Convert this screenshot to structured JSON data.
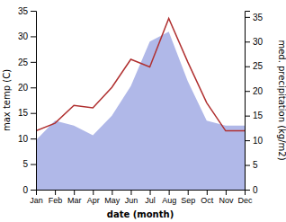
{
  "chart_data": {
    "type": "line",
    "categories": [
      "Jan",
      "Feb",
      "Mar",
      "Apr",
      "May",
      "Jun",
      "Jul",
      "Aug",
      "Sep",
      "Oct",
      "Nov",
      "Dec"
    ],
    "xlabel": "date (month)",
    "ylabel": "max temp (C)",
    "y2label": "med. precipitation (kg/m2)",
    "series": [
      {
        "type": "area",
        "axis": "y2",
        "color": "#b0b8e8",
        "values": [
          10.0,
          14.0,
          13.0,
          11.0,
          15.0,
          21.0,
          30.0,
          32.0,
          22.0,
          14.0,
          13.0,
          13.0
        ]
      },
      {
        "type": "line",
        "color": "#b03030",
        "values": [
          11.5,
          13.0,
          16.5,
          16.0,
          20.0,
          25.5,
          24.0,
          33.5,
          25.0,
          17.0,
          11.5,
          11.5
        ]
      }
    ],
    "ylim": [
      0,
      35
    ],
    "yticks": [
      0,
      5,
      10,
      15,
      20,
      25,
      30,
      35
    ],
    "y2lim": [
      0,
      36.25
    ],
    "y2ticks": [
      0,
      5,
      10,
      15,
      20,
      25,
      30,
      35
    ],
    "grid": false
  }
}
